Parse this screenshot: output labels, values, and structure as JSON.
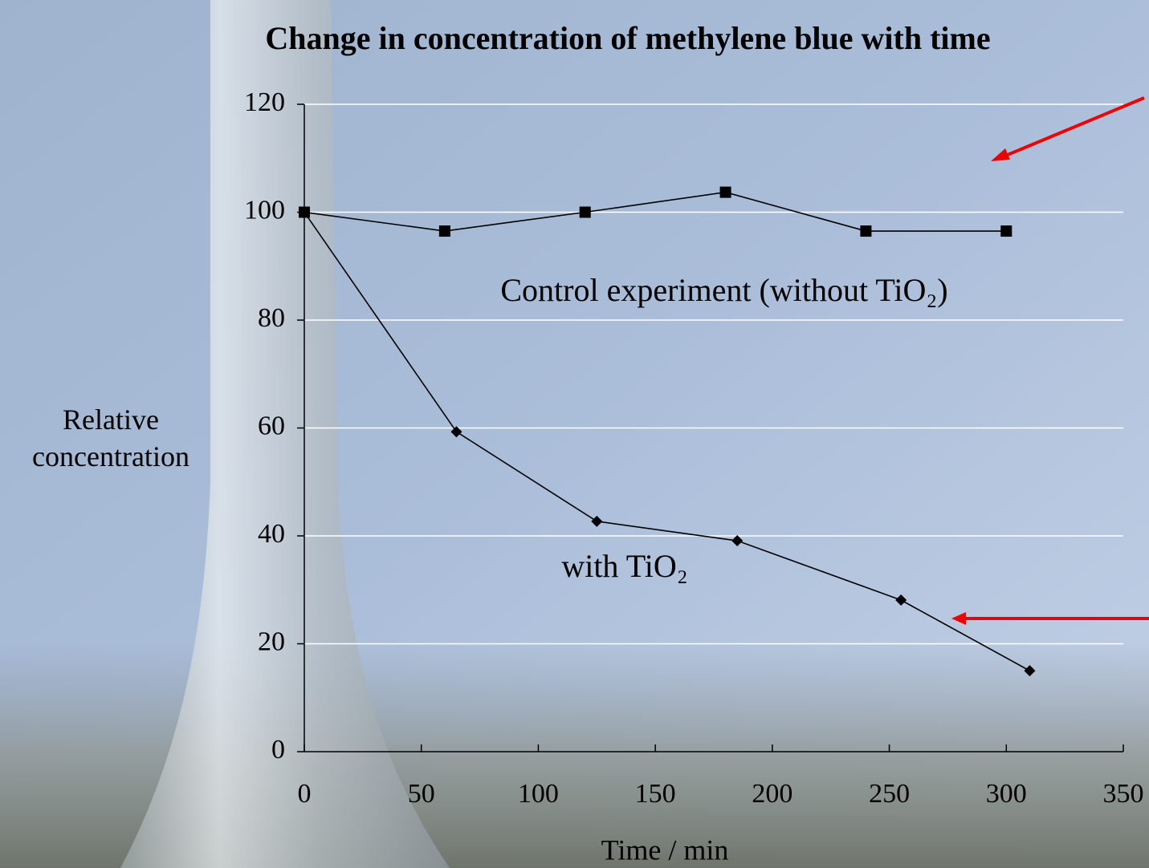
{
  "chart_data": {
    "type": "line",
    "title": "Change in concentration of methylene blue with time",
    "xlabel": "Time / min",
    "ylabel": "Relative concentration",
    "xlim": [
      0,
      350
    ],
    "xticks": [
      0,
      50,
      100,
      150,
      200,
      250,
      300,
      350
    ],
    "ylim": [
      0,
      120
    ],
    "yticks": [
      0,
      20,
      40,
      60,
      80,
      100,
      120
    ],
    "grid": true,
    "series": [
      {
        "name": "Control experiment (without TiO₂)",
        "color": "#000000",
        "marker": "square",
        "x": [
          0,
          60,
          120,
          180,
          240,
          300
        ],
        "values": [
          100,
          96.5,
          100,
          103.7,
          96.5,
          96.5
        ]
      },
      {
        "name": "with TiO₂",
        "color": "#000000",
        "marker": "diamond",
        "x": [
          0,
          65,
          125,
          185,
          255,
          310
        ],
        "values": [
          100,
          59.3,
          42.7,
          39.1,
          28.1,
          15
        ]
      }
    ]
  }
}
